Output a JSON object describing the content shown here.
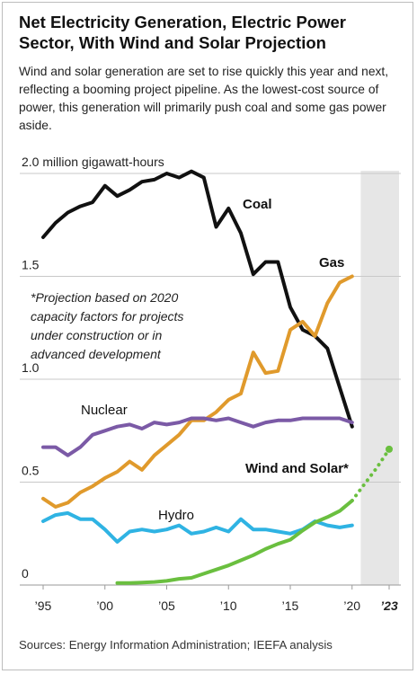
{
  "header": {
    "title": "Net Electricity Generation, Electric Power Sector, With Wind and Solar Projection",
    "subtitle": "Wind and solar generation are set to rise quickly this year and next, reflecting a booming project pipeline. As the lowest-cost source of power, this generation will primarily push coal and some gas power aside."
  },
  "footer": {
    "source": "Sources:  Energy Information Administration; IEEFA analysis"
  },
  "annotation": {
    "lines": [
      "*Projection based on 2020",
      "capacity factors for projects",
      "under construction or in",
      "advanced development"
    ]
  },
  "chart_data": {
    "type": "line",
    "ylabel": "2.0 million gigawatt-hours",
    "ylim": [
      0,
      2.0
    ],
    "xlim": [
      1995,
      2023
    ],
    "y_ticks": [
      {
        "value": 2.0,
        "label": "2.0 million gigawatt-hours"
      },
      {
        "value": 1.5,
        "label": "1.5"
      },
      {
        "value": 1.0,
        "label": "1.0"
      },
      {
        "value": 0.5,
        "label": "0.5"
      },
      {
        "value": 0,
        "label": "0"
      }
    ],
    "x_ticks": [
      {
        "value": 1995,
        "label": "’95"
      },
      {
        "value": 2000,
        "label": "’00"
      },
      {
        "value": 2005,
        "label": "’05"
      },
      {
        "value": 2010,
        "label": "’10"
      },
      {
        "value": 2015,
        "label": "’15"
      },
      {
        "value": 2020,
        "label": "’20"
      },
      {
        "value": 2023,
        "label": "’23"
      }
    ],
    "projection_shading": {
      "from": 2020.7,
      "to": 2023.8
    },
    "grid": "horizontal",
    "series": [
      {
        "name": "Coal",
        "color": "#111111",
        "x": [
          1995,
          1996,
          1997,
          1998,
          1999,
          2000,
          2001,
          2002,
          2003,
          2004,
          2005,
          2006,
          2007,
          2008,
          2009,
          2010,
          2011,
          2012,
          2013,
          2014,
          2015,
          2016,
          2017,
          2018,
          2019,
          2020
        ],
        "values": [
          1.69,
          1.76,
          1.81,
          1.84,
          1.86,
          1.94,
          1.89,
          1.92,
          1.96,
          1.97,
          2.0,
          1.98,
          2.01,
          1.98,
          1.74,
          1.83,
          1.71,
          1.51,
          1.57,
          1.57,
          1.35,
          1.24,
          1.21,
          1.15,
          0.96,
          0.77
        ]
      },
      {
        "name": "Gas",
        "color": "#e09a2c",
        "x": [
          1995,
          1996,
          1997,
          1998,
          1999,
          2000,
          2001,
          2002,
          2003,
          2004,
          2005,
          2006,
          2007,
          2008,
          2009,
          2010,
          2011,
          2012,
          2013,
          2014,
          2015,
          2016,
          2017,
          2018,
          2019,
          2020
        ],
        "values": [
          0.42,
          0.38,
          0.4,
          0.45,
          0.48,
          0.52,
          0.55,
          0.6,
          0.56,
          0.63,
          0.68,
          0.73,
          0.8,
          0.8,
          0.84,
          0.9,
          0.93,
          1.13,
          1.03,
          1.04,
          1.24,
          1.28,
          1.21,
          1.37,
          1.47,
          1.5
        ]
      },
      {
        "name": "Nuclear",
        "color": "#7b5aa6",
        "x": [
          1995,
          1996,
          1997,
          1998,
          1999,
          2000,
          2001,
          2002,
          2003,
          2004,
          2005,
          2006,
          2007,
          2008,
          2009,
          2010,
          2011,
          2012,
          2013,
          2014,
          2015,
          2016,
          2017,
          2018,
          2019,
          2020
        ],
        "values": [
          0.67,
          0.67,
          0.63,
          0.67,
          0.73,
          0.75,
          0.77,
          0.78,
          0.76,
          0.79,
          0.78,
          0.79,
          0.81,
          0.81,
          0.8,
          0.81,
          0.79,
          0.77,
          0.79,
          0.8,
          0.8,
          0.81,
          0.81,
          0.81,
          0.81,
          0.79
        ]
      },
      {
        "name": "Hydro",
        "color": "#2fb3e3",
        "x": [
          1995,
          1996,
          1997,
          1998,
          1999,
          2000,
          2001,
          2002,
          2003,
          2004,
          2005,
          2006,
          2007,
          2008,
          2009,
          2010,
          2011,
          2012,
          2013,
          2014,
          2015,
          2016,
          2017,
          2018,
          2019,
          2020
        ],
        "values": [
          0.31,
          0.34,
          0.35,
          0.32,
          0.32,
          0.27,
          0.21,
          0.26,
          0.27,
          0.26,
          0.27,
          0.29,
          0.25,
          0.26,
          0.28,
          0.26,
          0.32,
          0.27,
          0.27,
          0.26,
          0.25,
          0.27,
          0.31,
          0.29,
          0.28,
          0.29
        ]
      },
      {
        "name": "Wind and Solar*",
        "color": "#6abf3f",
        "x": [
          2001,
          2002,
          2003,
          2004,
          2005,
          2006,
          2007,
          2008,
          2009,
          2010,
          2011,
          2012,
          2013,
          2014,
          2015,
          2016,
          2017,
          2018,
          2019,
          2020
        ],
        "values": [
          0.01,
          0.01,
          0.012,
          0.015,
          0.02,
          0.03,
          0.035,
          0.055,
          0.075,
          0.095,
          0.12,
          0.145,
          0.175,
          0.2,
          0.22,
          0.265,
          0.305,
          0.33,
          0.36,
          0.41
        ],
        "projection": {
          "x": [
            2020,
            2021,
            2022,
            2023
          ],
          "values": [
            0.41,
            0.49,
            0.57,
            0.66
          ]
        }
      }
    ],
    "labels": [
      {
        "text": "Coal",
        "series": "Coal",
        "bold": true
      },
      {
        "text": "Gas",
        "series": "Gas",
        "bold": true
      },
      {
        "text": "Nuclear",
        "series": "Nuclear",
        "bold": false
      },
      {
        "text": "Hydro",
        "series": "Hydro",
        "bold": false
      },
      {
        "text": "Wind and Solar*",
        "series": "Wind and Solar*",
        "bold": true
      }
    ]
  }
}
